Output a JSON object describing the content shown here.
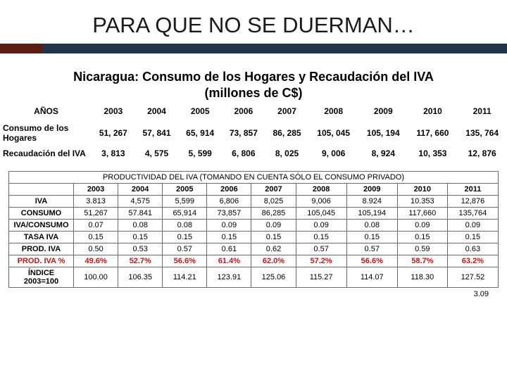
{
  "title": "PARA QUE NO SE DUERMAN…",
  "subtitle_line1": "Nicaragua: Consumo de los Hogares y Recaudación del IVA",
  "subtitle_line2": "(millones de C$)",
  "table1": {
    "header_label": "AÑOS",
    "years": [
      "2003",
      "2004",
      "2005",
      "2006",
      "2007",
      "2008",
      "2009",
      "2010",
      "2011"
    ],
    "rows": [
      {
        "label": "Consumo de los Hogares",
        "values": [
          "51, 267",
          "57, 841",
          "65, 914",
          "73, 857",
          "86, 285",
          "105, 045",
          "105, 194",
          "117, 660",
          "135, 764"
        ]
      },
      {
        "label": "Recaudación del IVA",
        "values": [
          "3, 813",
          "4, 575",
          "5, 599",
          "6, 806",
          "8, 025",
          "9, 006",
          "8, 924",
          "10, 353",
          "12, 876"
        ]
      }
    ]
  },
  "table2": {
    "caption": "PRODUCTIVIDAD DEL IVA (TOMANDO EN CUENTA SÓLO EL CONSUMO PRIVADO)",
    "years": [
      "2003",
      "2004",
      "2005",
      "2006",
      "2007",
      "2008",
      "2009",
      "2010",
      "2011"
    ],
    "rows": [
      {
        "label": "IVA",
        "red": false,
        "values": [
          "3.813",
          "4,575",
          "5,599",
          "6,806",
          "8,025",
          "9,006",
          "8.924",
          "10.353",
          "12,876"
        ]
      },
      {
        "label": "CONSUMO",
        "red": false,
        "values": [
          "51,267",
          "57.841",
          "65,914",
          "73,857",
          "86,285",
          "105,045",
          "105,194",
          "117,660",
          "135,764"
        ]
      },
      {
        "label": "IVA/CONSUMO",
        "red": false,
        "values": [
          "0.07",
          "0.08",
          "0.08",
          "0.09",
          "0.09",
          "0.09",
          "0.08",
          "0.09",
          "0.09"
        ]
      },
      {
        "label": "TASA IVA",
        "red": false,
        "values": [
          "0.15",
          "0.15",
          "0.15",
          "0.15",
          "0.15",
          "0.15",
          "0.15",
          "0.15",
          "0.15"
        ]
      },
      {
        "label": "PROD. IVA",
        "red": false,
        "values": [
          "0.50",
          "0.53",
          "0.57",
          "0.61",
          "0.62",
          "0.57",
          "0.57",
          "0.59",
          "0.63"
        ]
      },
      {
        "label": "PROD. IVA %",
        "red": true,
        "values": [
          "49.6%",
          "52.7%",
          "56.6%",
          "61.4%",
          "62.0%",
          "57.2%",
          "56.6%",
          "58.7%",
          "63.2%"
        ]
      },
      {
        "label": "ÍNDICE 2003=100",
        "red": false,
        "values": [
          "100.00",
          "106.35",
          "114.21",
          "123.91",
          "125.06",
          "115.27",
          "114.07",
          "118.30",
          "127.52"
        ]
      }
    ],
    "footer_value": "3.09"
  },
  "colors": {
    "accent_brown": "#5b1f12",
    "accent_navy": "#22334a",
    "table_border": "#6b6b6b",
    "text": "#000000",
    "emphasis_red": "#c01818",
    "background": "#ffffff"
  },
  "typography": {
    "title_fontsize_pt": 24,
    "subtitle_fontsize_pt": 14,
    "table1_fontsize_pt": 9,
    "table2_fontsize_pt": 8,
    "font_family": "Arial"
  }
}
